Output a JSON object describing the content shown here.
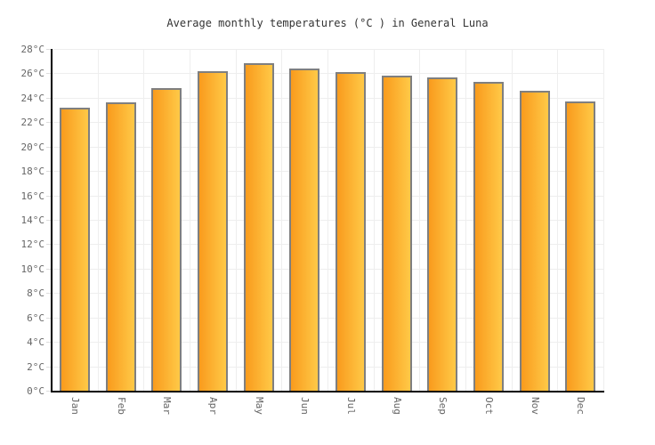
{
  "chart_data": {
    "type": "bar",
    "title": "Average monthly temperatures (°C ) in General Luna",
    "categories": [
      "Jan",
      "Feb",
      "Mar",
      "Apr",
      "May",
      "Jun",
      "Jul",
      "Aug",
      "Sep",
      "Oct",
      "Nov",
      "Dec"
    ],
    "values": [
      23.2,
      23.6,
      24.8,
      26.2,
      26.8,
      26.4,
      26.1,
      25.8,
      25.7,
      25.3,
      24.6,
      23.7
    ],
    "unit": "°C",
    "xlabel": "",
    "ylabel": "",
    "ylim": [
      0,
      28
    ],
    "ytick_step": 2,
    "ytick_suffix": "°C",
    "grid": "on",
    "legend": "none",
    "colors": {
      "bar_gradient_left": "#f99b1d",
      "bar_gradient_right": "#ffc947",
      "bar_border": "#7f7f7f",
      "gridline": "#eeeeee",
      "tick": "#dddddd",
      "axis": "#000000",
      "label_text": "#666666",
      "title_text": "#333333",
      "background": "#ffffff"
    }
  }
}
